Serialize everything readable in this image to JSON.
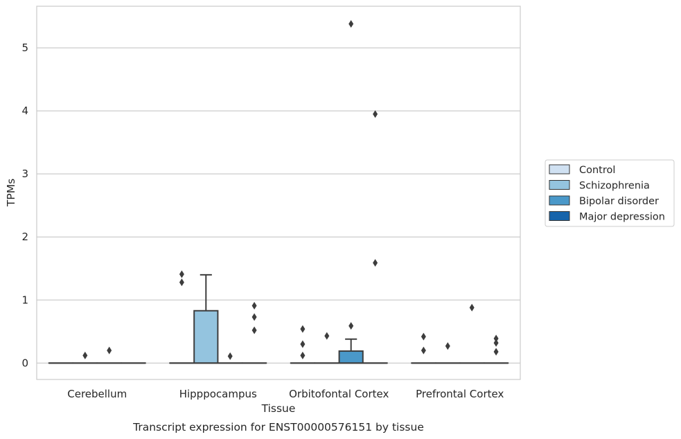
{
  "chart_data": {
    "type": "box",
    "title": "Transcript expression for ENST00000576151 by tissue",
    "xlabel": "Tissue",
    "ylabel": "TPMs",
    "ylim": [
      -0.26,
      5.66
    ],
    "yticks": [
      0,
      1,
      2,
      3,
      4,
      5
    ],
    "grid": "horizontal",
    "legend_position": "right",
    "categories": [
      "Cerebellum",
      "Hipppocampus",
      "Orbitofontal Cortex",
      "Prefrontal Cortex"
    ],
    "series": [
      {
        "name": "Control",
        "color": "#d0e1f2",
        "boxes": [
          {
            "q1": 0,
            "median": 0,
            "q3": 0,
            "whisker_low": 0,
            "whisker_high": 0,
            "outliers": []
          },
          {
            "q1": 0,
            "median": 0,
            "q3": 0,
            "whisker_low": 0,
            "whisker_high": 0,
            "outliers": [
              1.41,
              1.28
            ]
          },
          {
            "q1": 0,
            "median": 0,
            "q3": 0,
            "whisker_low": 0,
            "whisker_high": 0,
            "outliers": [
              0.54,
              0.3,
              0.12
            ]
          },
          {
            "q1": 0,
            "median": 0,
            "q3": 0,
            "whisker_low": 0,
            "whisker_high": 0,
            "outliers": [
              0.42,
              0.2
            ]
          }
        ]
      },
      {
        "name": "Schizophrenia",
        "color": "#94c4df",
        "boxes": [
          {
            "q1": 0,
            "median": 0,
            "q3": 0,
            "whisker_low": 0,
            "whisker_high": 0,
            "outliers": [
              0.12
            ]
          },
          {
            "q1": 0,
            "median": 0,
            "q3": 0.83,
            "whisker_low": 0,
            "whisker_high": 1.4,
            "outliers": []
          },
          {
            "q1": 0,
            "median": 0,
            "q3": 0,
            "whisker_low": 0,
            "whisker_high": 0,
            "outliers": [
              0.43
            ]
          },
          {
            "q1": 0,
            "median": 0,
            "q3": 0,
            "whisker_low": 0,
            "whisker_high": 0,
            "outliers": [
              0.27
            ]
          }
        ]
      },
      {
        "name": "Bipolar disorder",
        "color": "#4a98c9",
        "boxes": [
          {
            "q1": 0,
            "median": 0,
            "q3": 0,
            "whisker_low": 0,
            "whisker_high": 0,
            "outliers": [
              0.2
            ]
          },
          {
            "q1": 0,
            "median": 0,
            "q3": 0,
            "whisker_low": 0,
            "whisker_high": 0,
            "outliers": [
              0.11
            ]
          },
          {
            "q1": 0,
            "median": 0,
            "q3": 0.19,
            "whisker_low": 0,
            "whisker_high": 0.38,
            "outliers": [
              5.38,
              0.59
            ]
          },
          {
            "q1": 0,
            "median": 0,
            "q3": 0,
            "whisker_low": 0,
            "whisker_high": 0,
            "outliers": [
              0.88
            ]
          }
        ]
      },
      {
        "name": "Major depression",
        "color": "#1764ab",
        "boxes": [
          {
            "q1": 0,
            "median": 0,
            "q3": 0,
            "whisker_low": 0,
            "whisker_high": 0,
            "outliers": []
          },
          {
            "q1": 0,
            "median": 0,
            "q3": 0,
            "whisker_low": 0,
            "whisker_high": 0,
            "outliers": [
              0.91,
              0.73,
              0.52
            ]
          },
          {
            "q1": 0,
            "median": 0,
            "q3": 0,
            "whisker_low": 0,
            "whisker_high": 0,
            "outliers": [
              3.95,
              1.59
            ]
          },
          {
            "q1": 0,
            "median": 0,
            "q3": 0,
            "whisker_low": 0,
            "whisker_high": 0,
            "outliers": [
              0.39,
              0.32,
              0.18
            ]
          }
        ]
      }
    ]
  }
}
